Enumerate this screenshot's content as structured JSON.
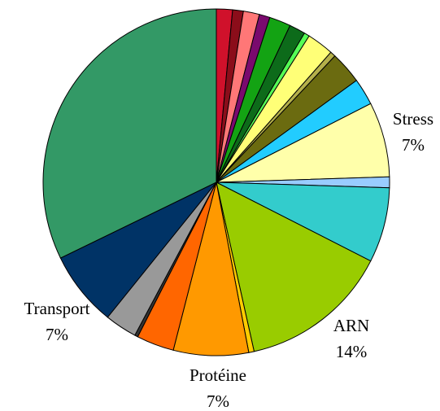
{
  "chart_data": {
    "type": "pie",
    "categories": [
      null,
      null,
      null,
      null,
      null,
      null,
      null,
      null,
      null,
      null,
      null,
      "Stress",
      null,
      null,
      "ARN",
      null,
      "Protéine",
      null,
      null,
      null,
      "Transport",
      null
    ],
    "values": [
      1.5,
      1,
      1.5,
      1,
      2,
      1.5,
      0.5,
      2.5,
      0.5,
      3,
      2.5,
      7,
      1,
      7,
      14,
      0.5,
      7,
      3.5,
      0.3,
      3,
      7,
      32.2
    ],
    "value_labels": [
      null,
      null,
      null,
      null,
      null,
      null,
      null,
      null,
      null,
      null,
      null,
      "7%",
      null,
      null,
      "14%",
      null,
      "7%",
      null,
      null,
      null,
      "7%",
      null
    ],
    "colors": [
      "#d0112b",
      "#8b0d1a",
      "#ff7777",
      "#7a0a6e",
      "#13a313",
      "#0d6b1a",
      "#55ff55",
      "#ffff77",
      "#b5b04a",
      "#6b6b10",
      "#22ccff",
      "#ffffaa",
      "#99ccff",
      "#33cccc",
      "#99cc00",
      "#ffcc00",
      "#ff9900",
      "#ff6600",
      "#333333",
      "#999999",
      "#003366",
      "#339966"
    ]
  }
}
